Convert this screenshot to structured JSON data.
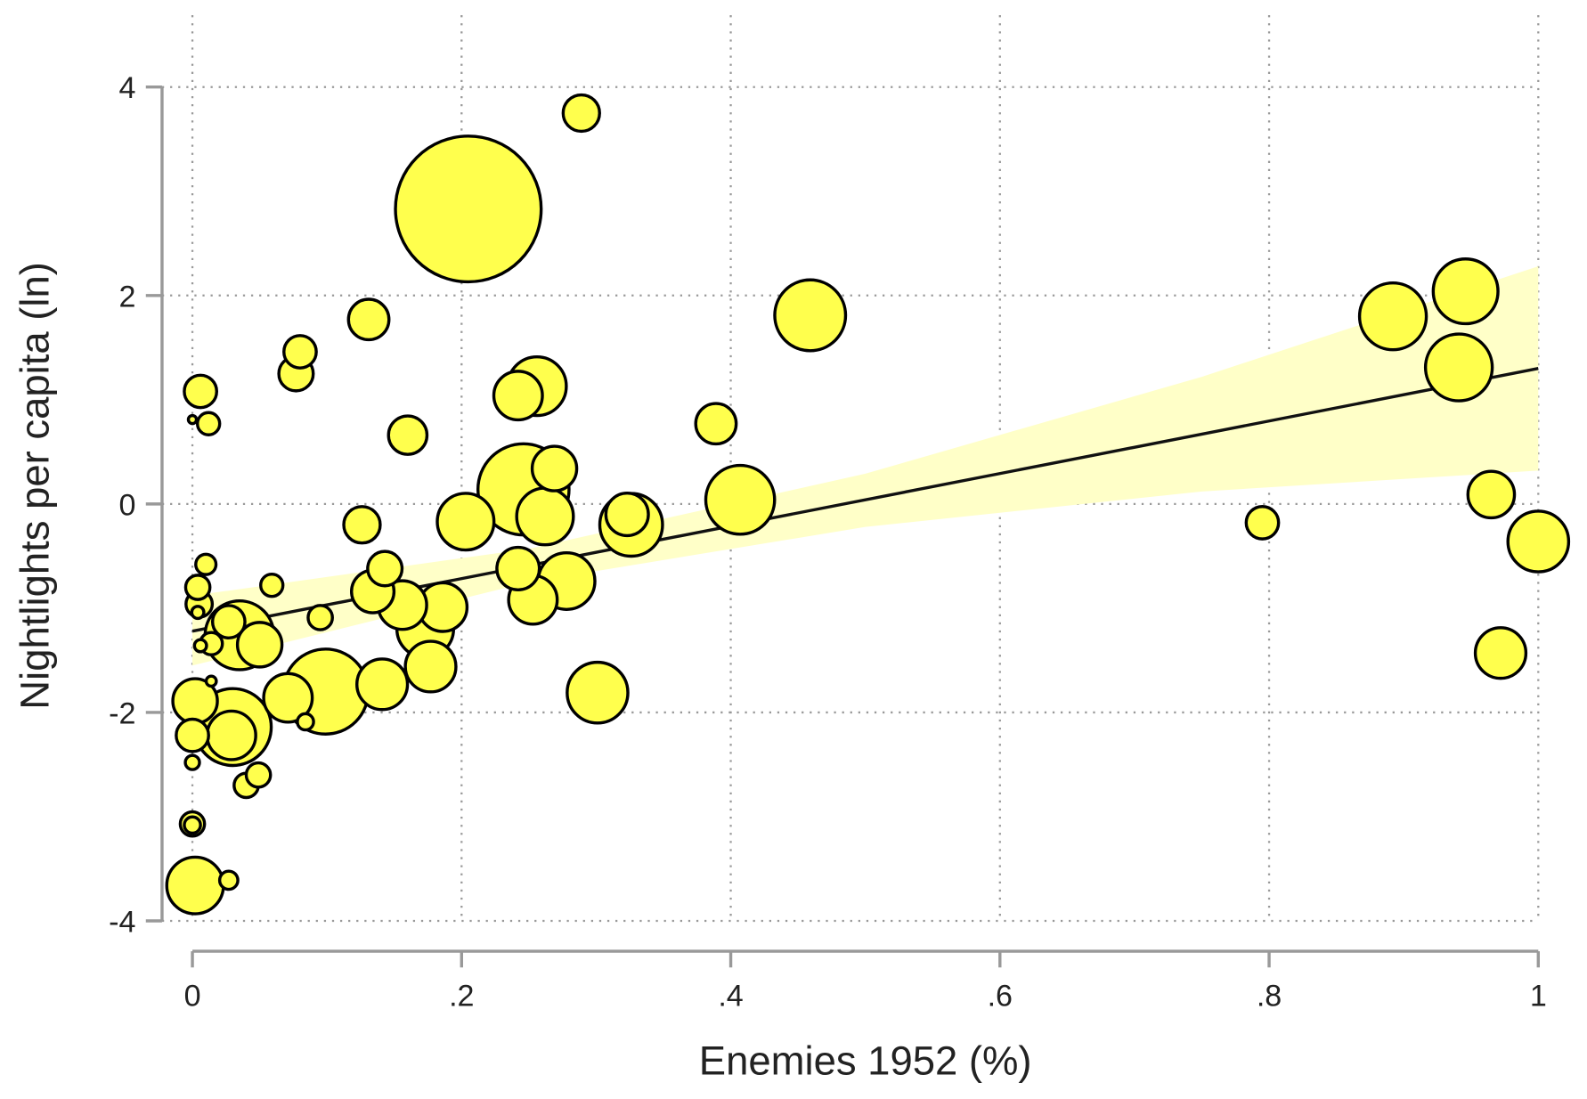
{
  "chart_data": {
    "type": "bubble",
    "x_label": "Enemies 1952 (%)",
    "y_label": "Nightlights per capita (ln)",
    "xlim": [
      0,
      1
    ],
    "ylim": [
      -4,
      4
    ],
    "xticks": [
      0,
      {
        "value": 0.2,
        "label": ".2"
      },
      {
        "value": 0.4,
        "label": ".4"
      },
      {
        "value": 0.6,
        "label": ".6"
      },
      {
        "value": 0.8,
        "label": ".8"
      },
      1
    ],
    "yticks": [
      -4,
      -2,
      0,
      2,
      4
    ],
    "grid": true,
    "color": "#ffff4d",
    "x": [
      0.289,
      0.205,
      0.131,
      0.08,
      0.077,
      0.006,
      0.012,
      0,
      0.16,
      0.242,
      0.256,
      0.389,
      0.459,
      0.892,
      0.946,
      0.941,
      0.965,
      1.0,
      0.972,
      0.795,
      0.407,
      0.326,
      0.323,
      0.269,
      0.262,
      0.246,
      0.203,
      0.126,
      0.242,
      0.278,
      0.253,
      0.301,
      0.186,
      0.173,
      0.177,
      0.141,
      0.156,
      0.143,
      0.134,
      0.095,
      0.099,
      0.071,
      0.084,
      0.03,
      0.029,
      0.002,
      0,
      0,
      0.04,
      0.049,
      0,
      0,
      0.002,
      0.027,
      0.035,
      0.027,
      0.05,
      0.005,
      0.004,
      0.01,
      0.059,
      0.014,
      0.006,
      0.014,
      0.004
    ],
    "values": [
      3.75,
      2.83,
      1.77,
      1.46,
      1.25,
      1.08,
      0.77,
      0.81,
      0.66,
      1.04,
      1.13,
      0.77,
      1.81,
      1.8,
      2.04,
      1.31,
      0.09,
      -0.36,
      -1.43,
      -0.18,
      0.04,
      -0.2,
      -0.1,
      0.34,
      -0.12,
      0.14,
      -0.17,
      -0.2,
      -0.62,
      -0.74,
      -0.92,
      -1.81,
      -0.99,
      -1.2,
      -1.56,
      -1.73,
      -0.97,
      -0.62,
      -0.84,
      -1.09,
      -1.8,
      -1.86,
      -2.09,
      -2.14,
      -2.22,
      -1.89,
      -2.22,
      -2.48,
      -2.7,
      -2.6,
      -3.07,
      -3.08,
      -3.66,
      -3.61,
      -1.26,
      -1.13,
      -1.35,
      -0.96,
      -0.8,
      -0.58,
      -0.78,
      -1.34,
      -1.36,
      -1.7,
      -1.04
    ],
    "sizes": [
      18,
      72,
      20,
      16,
      17,
      16,
      11,
      4,
      19,
      24,
      29,
      20,
      35,
      33,
      32,
      33,
      23,
      30,
      25,
      16,
      34,
      31,
      21,
      22,
      28,
      45,
      28,
      18,
      21,
      28,
      24,
      30,
      24,
      28,
      25,
      25,
      24,
      17,
      21,
      12,
      42,
      24,
      8,
      38,
      24,
      22,
      16,
      7,
      12,
      12,
      12,
      8,
      28,
      9,
      34,
      16,
      22,
      13,
      12,
      10,
      11,
      11,
      6,
      5,
      6
    ],
    "fit_line": {
      "color": "#111111",
      "x": [
        0,
        1
      ],
      "values": [
        -1.22,
        1.3
      ]
    },
    "ci_band": {
      "color": "#ffffc8",
      "x": [
        0,
        0.25,
        0.5,
        0.75,
        1
      ],
      "lower": [
        -1.55,
        -0.75,
        -0.22,
        0.12,
        0.32
      ],
      "upper": [
        -0.88,
        -0.43,
        0.29,
        1.22,
        2.28
      ]
    }
  }
}
